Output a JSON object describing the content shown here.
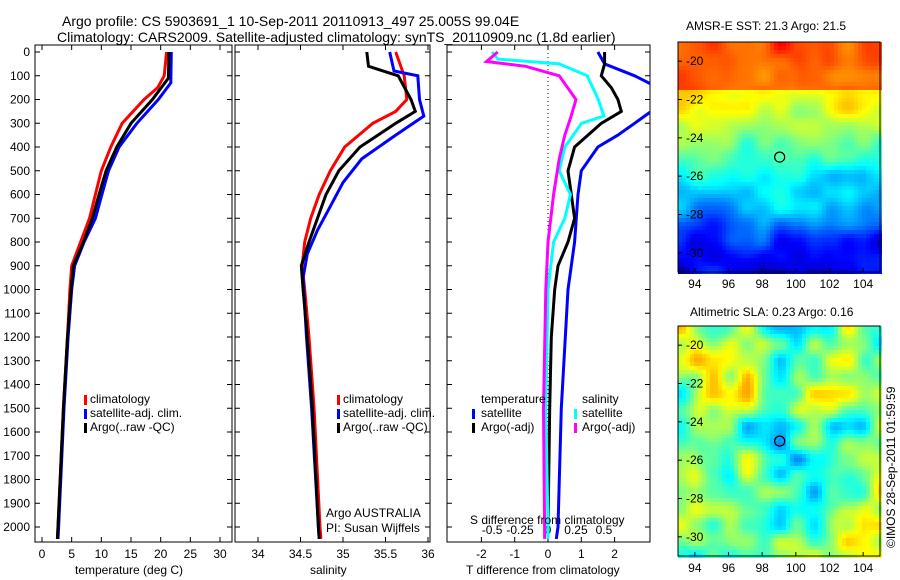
{
  "header": {
    "line1": "Argo profile: CS 5903691_1 10-Sep-2011 20110913_497 25.005S 99.04E",
    "line2": "Climatology: CARS2009. Satellite-adjusted climatology: synTS_20110909.nc (1.8d earlier)"
  },
  "credit": "©IMOS 28-Sep-2011 01:59:59",
  "colors": {
    "climatology": "#ff0000",
    "satellite": "#0000ff",
    "argo": "#000000",
    "sal_sat": "#00ffff",
    "sal_argo": "#ff00ff"
  },
  "chart_data": [
    {
      "type": "line",
      "name": "temperature",
      "xlabel": "temperature (deg C)",
      "xlim": [
        -1,
        31
      ],
      "ylim": [
        2050,
        0
      ],
      "xticks": [
        "0",
        "5",
        "10",
        "15",
        "20",
        "25",
        "30"
      ],
      "xtickv": [
        0,
        5,
        10,
        15,
        20,
        25,
        30
      ],
      "yticks": [
        "0",
        "100",
        "200",
        "300",
        "400",
        "500",
        "600",
        "700",
        "800",
        "900",
        "1000",
        "1100",
        "1200",
        "1300",
        "1400",
        "1500",
        "1600",
        "1700",
        "1800",
        "1900",
        "2000"
      ],
      "legend": [
        "climatology",
        "satellite-adj. clim.",
        "Argo(..raw -QC)"
      ],
      "series": [
        {
          "name": "climatology",
          "color": "#ff0000",
          "depth": [
            0,
            100,
            150,
            200,
            300,
            400,
            500,
            600,
            700,
            800,
            900,
            1000,
            1200,
            1500,
            2000,
            2050
          ],
          "values": [
            21,
            20.6,
            19.5,
            17.2,
            13.5,
            11.6,
            10,
            9,
            8,
            6.5,
            5,
            4.7,
            4.3,
            3.6,
            2.7,
            2.6
          ]
        },
        {
          "name": "satellite-adj. clim.",
          "color": "#0000ff",
          "depth": [
            0,
            130,
            200,
            300,
            400,
            500,
            600,
            700,
            800,
            900,
            1000,
            1200,
            1500,
            2000,
            2050
          ],
          "values": [
            21.8,
            21.7,
            19.6,
            16,
            13,
            11.2,
            10.1,
            9,
            7.1,
            5.5,
            5,
            4.4,
            3.7,
            2.8,
            2.7
          ]
        },
        {
          "name": "Argo(..raw -QC)",
          "color": "#000000",
          "depth": [
            0,
            110,
            200,
            300,
            400,
            500,
            600,
            700,
            800,
            900,
            1000,
            1200,
            1500,
            2000,
            2050
          ],
          "values": [
            21.4,
            21.3,
            18.6,
            15,
            12.6,
            10.8,
            9.6,
            8.5,
            7,
            5.3,
            4.9,
            4.3,
            3.6,
            2.7,
            2.6
          ]
        }
      ]
    },
    {
      "type": "line",
      "name": "salinity",
      "xlabel": "salinity",
      "xlim": [
        33.7,
        36.05
      ],
      "ylim": [
        2050,
        0
      ],
      "xticks": [
        "34",
        "34.5",
        "35",
        "35.5",
        "36"
      ],
      "xtickv": [
        34,
        34.5,
        35,
        35.5,
        36
      ],
      "legend": [
        "climatology",
        "satellite-adj. clim.",
        "Argo(..raw -QC)"
      ],
      "annotation": [
        "Argo AUSTRALIA",
        "PI: Susan Wijffels"
      ],
      "series": [
        {
          "name": "climatology",
          "color": "#ff0000",
          "depth": [
            0,
            100,
            200,
            250,
            300,
            400,
            500,
            600,
            700,
            800,
            900,
            1000,
            1200,
            1500,
            2000,
            2050
          ],
          "values": [
            35.62,
            35.72,
            35.75,
            35.62,
            35.35,
            35.02,
            34.85,
            34.72,
            34.62,
            34.55,
            34.52,
            34.55,
            34.6,
            34.66,
            34.73,
            34.74
          ]
        },
        {
          "name": "satellite-adj. clim.",
          "color": "#0000ff",
          "depth": [
            0,
            80,
            100,
            200,
            270,
            350,
            450,
            550,
            650,
            750,
            850,
            950,
            1200,
            1500,
            2000,
            2050
          ],
          "values": [
            35.55,
            35.6,
            35.88,
            35.9,
            35.95,
            35.62,
            35.22,
            35,
            34.85,
            34.7,
            34.58,
            34.53,
            34.57,
            34.63,
            34.71,
            34.72
          ]
        },
        {
          "name": "Argo(..raw -QC)",
          "color": "#000000",
          "depth": [
            0,
            60,
            100,
            200,
            250,
            300,
            400,
            500,
            600,
            700,
            800,
            900,
            1000,
            1200,
            1500,
            2000,
            2050
          ],
          "values": [
            35.28,
            35.3,
            35.65,
            35.8,
            35.85,
            35.62,
            35.2,
            34.95,
            34.8,
            34.7,
            34.6,
            34.51,
            34.53,
            34.58,
            34.64,
            34.71,
            34.72
          ]
        }
      ]
    },
    {
      "type": "line",
      "name": "difference",
      "xlabel": "T difference from climatology",
      "x2label": "S difference from climatology",
      "xlim": [
        -3,
        3
      ],
      "ylim": [
        2050,
        0
      ],
      "xticks": [
        "-2",
        "-1",
        "0",
        "1",
        "2"
      ],
      "xtickv": [
        -2,
        -1,
        0,
        1,
        2
      ],
      "x2ticks": [
        "-0.5",
        "-0.25",
        "0",
        "0.25",
        "0.5"
      ],
      "x2tickv": [
        -0.5,
        -0.25,
        0,
        0.25,
        0.5
      ],
      "legend_headers": [
        "temperature",
        "salinity"
      ],
      "legend": [
        "satellite",
        "Argo(-adj)",
        "satellite",
        "Argo(-adj)"
      ],
      "series": [
        {
          "name": "T satellite",
          "color": "#0000ff",
          "axis": "T",
          "depth": [
            0,
            50,
            100,
            150,
            250,
            300,
            350,
            400,
            500,
            600,
            800,
            1000,
            1500,
            2000,
            2050
          ],
          "values": [
            1.5,
            1.7,
            2.6,
            3.3,
            3.1,
            2.6,
            2.1,
            1.5,
            1.0,
            0.9,
            0.8,
            0.6,
            0.4,
            0.3,
            0.25
          ]
        },
        {
          "name": "T Argo(-adj)",
          "color": "#000000",
          "axis": "T",
          "depth": [
            0,
            50,
            100,
            150,
            200,
            250,
            300,
            400,
            500,
            600,
            700,
            800,
            900,
            1000,
            1200,
            1500,
            2000
          ],
          "values": [
            1.7,
            1.7,
            1.6,
            1.9,
            2.1,
            2.2,
            1.6,
            0.8,
            0.6,
            0.7,
            0.8,
            0.6,
            0.3,
            0.2,
            0.1,
            0.05,
            0
          ]
        },
        {
          "name": "S satellite",
          "color": "#00ffff",
          "axis": "S",
          "depth": [
            0,
            30,
            50,
            100,
            200,
            270,
            300,
            400,
            500,
            600,
            700,
            800,
            1000,
            1500,
            2000,
            2050
          ],
          "values": [
            -0.5,
            -0.45,
            0.1,
            0.35,
            0.45,
            0.5,
            0.3,
            0.15,
            0.1,
            0.2,
            0.15,
            0.05,
            0,
            -0.02,
            0,
            0
          ]
        },
        {
          "name": "S Argo(-adj)",
          "color": "#ff00ff",
          "axis": "S",
          "depth": [
            0,
            40,
            60,
            100,
            200,
            280,
            350,
            450,
            600,
            800,
            1000,
            1500,
            2000,
            2050
          ],
          "values": [
            -0.45,
            -0.55,
            -0.2,
            0.1,
            0.25,
            0.2,
            0.15,
            0.1,
            0.05,
            0,
            -0.02,
            -0.04,
            -0.03,
            -0.03
          ]
        }
      ]
    },
    {
      "type": "heatmap",
      "title": "AMSR-E SST: 21.3 Argo: 21.5",
      "xticks": [
        "94",
        "96",
        "98",
        "100",
        "102",
        "104"
      ],
      "yticks": [
        "-20",
        "-22",
        "-24",
        "-26",
        "-28",
        "-30"
      ],
      "xlim": [
        93,
        105
      ],
      "ylim": [
        -31,
        -19
      ],
      "marker": [
        99.04,
        -25.005
      ]
    },
    {
      "type": "heatmap",
      "title": "Altimetric SLA: 0.23 Argo: 0.16",
      "xticks": [
        "94",
        "96",
        "98",
        "100",
        "102",
        "104"
      ],
      "yticks": [
        "-20",
        "-22",
        "-24",
        "-26",
        "-28",
        "-30"
      ],
      "xlim": [
        93,
        105
      ],
      "ylim": [
        -31,
        -19
      ],
      "marker": [
        99.04,
        -25.005
      ]
    }
  ]
}
